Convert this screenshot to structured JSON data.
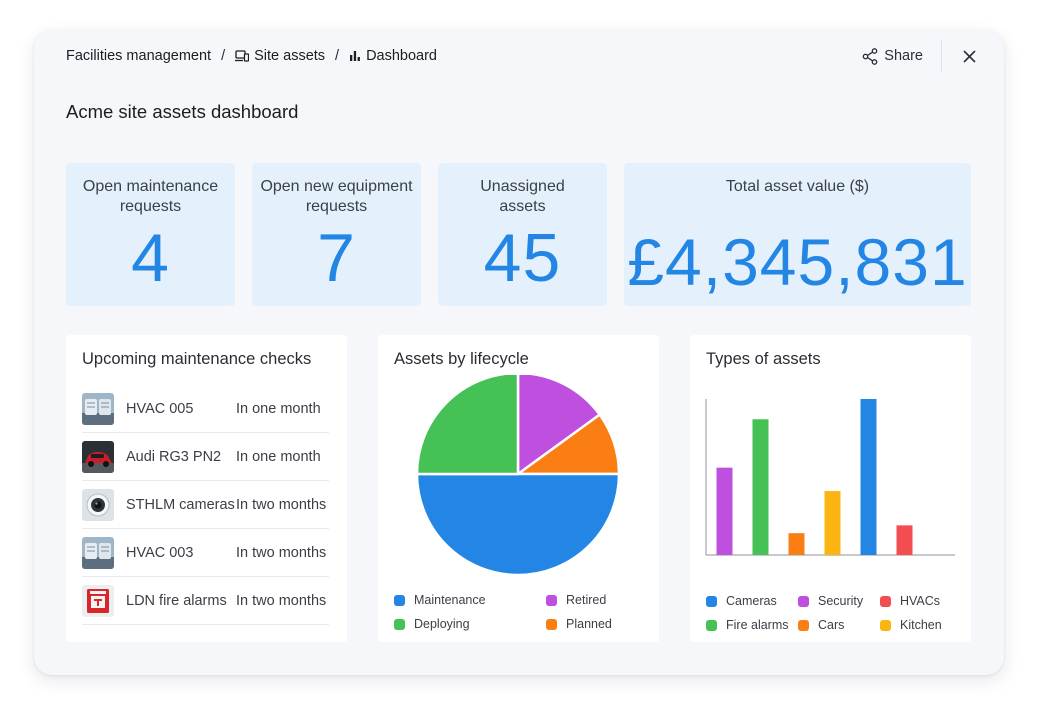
{
  "breadcrumb": {
    "items": [
      {
        "label": "Facilities management",
        "icon": "none"
      },
      {
        "label": "Site assets",
        "icon": "devices-icon"
      },
      {
        "label": "Dashboard",
        "icon": "bar-chart-icon"
      }
    ],
    "separator": "/"
  },
  "actions": {
    "share_label": "Share",
    "close_icon": "close-icon"
  },
  "page_title": "Acme site assets dashboard",
  "kpis": [
    {
      "label": "Open maintenance requests",
      "value": "4"
    },
    {
      "label": "Open new equipment requests",
      "value": "7"
    },
    {
      "label": "Unassigned assets",
      "value": "45"
    },
    {
      "label": "Total asset value ($)",
      "value": "£4,345,831"
    }
  ],
  "maintenance": {
    "title": "Upcoming maintenance checks",
    "items": [
      {
        "name": "HVAC 005",
        "when": "In one month",
        "thumb": "hvac"
      },
      {
        "name": "Audi RG3 PN2",
        "when": "In one month",
        "thumb": "car"
      },
      {
        "name": "STHLM cameras",
        "when": "In two months",
        "thumb": "camera"
      },
      {
        "name": "HVAC 003",
        "when": "In two months",
        "thumb": "hvac"
      },
      {
        "name": "LDN fire alarms",
        "when": "In two months",
        "thumb": "fire-alarm"
      }
    ]
  },
  "colors": {
    "accent": "#2386e4",
    "kpi_bg": "#e4f1fc",
    "blue": "#2386e4",
    "green": "#45c155",
    "purple": "#bf4fdf",
    "orange": "#fb7e14",
    "red": "#f24e52",
    "yellow": "#fab512"
  },
  "chart_data": [
    {
      "type": "pie",
      "title": "Assets by lifecycle",
      "series": [
        {
          "name": "Maintenance",
          "value": 50,
          "color": "#2386e4"
        },
        {
          "name": "Deploying",
          "value": 25,
          "color": "#45c155"
        },
        {
          "name": "Retired",
          "value": 15,
          "color": "#bf4fdf"
        },
        {
          "name": "Planned",
          "value": 10,
          "color": "#fb7e14"
        }
      ],
      "legend_order": [
        "Maintenance",
        "Retired",
        "Deploying",
        "Planned"
      ],
      "legend_position": "bottom"
    },
    {
      "type": "bar",
      "title": "Types of assets",
      "categories": [
        "Cameras",
        "Fire alarms",
        "Cars",
        "Kitchen",
        "HVACs",
        "Security"
      ],
      "plot_order": [
        "Security",
        "Fire alarms",
        "Cars",
        "Kitchen",
        "Cameras",
        "HVACs"
      ],
      "values": {
        "Security": 56,
        "Fire alarms": 87,
        "Cars": 14,
        "Kitchen": 41,
        "Cameras": 100,
        "HVACs": 19
      },
      "colors": {
        "Cameras": "#2386e4",
        "Security": "#bf4fdf",
        "HVACs": "#f24e52",
        "Fire alarms": "#45c155",
        "Cars": "#fb7e14",
        "Kitchen": "#fab512"
      },
      "legend_order": [
        "Cameras",
        "Security",
        "HVACs",
        "Fire alarms",
        "Cars",
        "Kitchen"
      ],
      "ylim": [
        0,
        100
      ],
      "grid": false,
      "legend_position": "bottom"
    }
  ]
}
